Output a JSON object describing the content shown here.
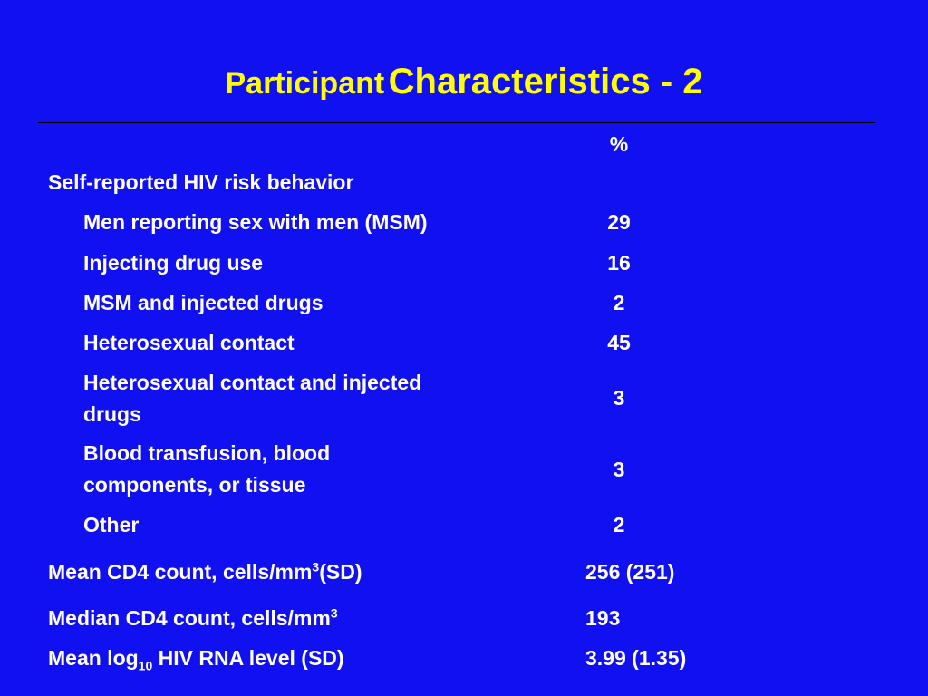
{
  "title": {
    "part1": "Participant",
    "part2": "Characteristics - 2"
  },
  "header": {
    "col_value": "%"
  },
  "section": {
    "label": "Self-reported HIV risk behavior"
  },
  "rows": [
    {
      "label": "Men reporting sex with men (MSM)",
      "value": "29"
    },
    {
      "label": "Injecting drug use",
      "value": "16"
    },
    {
      "label": "MSM and injected drugs",
      "value": "2"
    },
    {
      "label": "Heterosexual contact",
      "value": "45"
    },
    {
      "label_line1": "Heterosexual contact and injected",
      "label_line2": "drugs",
      "value": "3"
    },
    {
      "label_line1": "Blood transfusion, blood",
      "label_line2": "components, or tissue",
      "value": "3"
    },
    {
      "label": "Other",
      "value": "2"
    }
  ],
  "stats": [
    {
      "label_pre": "Mean CD4 count, cells/mm",
      "label_sup": "3",
      "label_post": "(SD)",
      "value": "256 (251)"
    },
    {
      "label_pre": "Median CD4 count, cells/mm",
      "label_sup": "3",
      "value": "193"
    },
    {
      "label_pre": "Mean log",
      "label_sub": "10",
      "label_post": " HIV RNA level (SD)",
      "value": "3.99 (1.35)"
    }
  ],
  "colors": {
    "background": "#1010f0",
    "title": "#ffff00",
    "text": "#ffffff",
    "rule": "#000000"
  }
}
